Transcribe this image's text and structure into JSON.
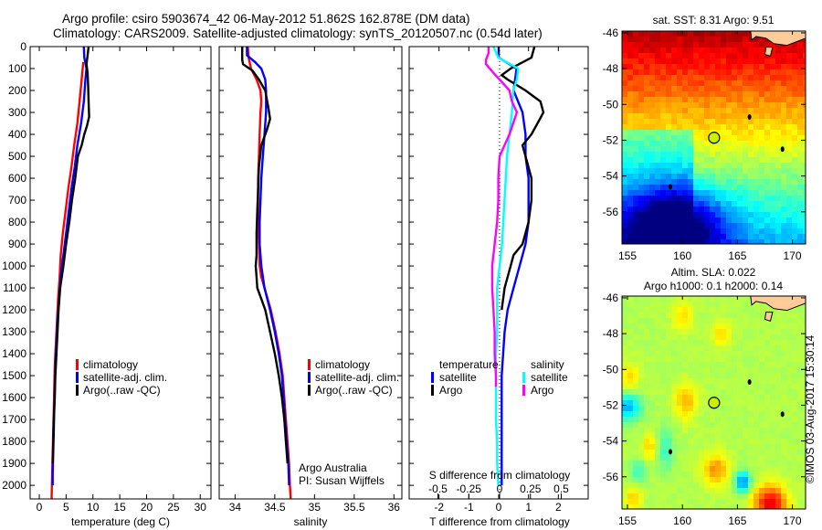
{
  "header": {
    "title_line1": "Argo profile: csiro 5903674_42 06-May-2012 51.862S 162.878E (DM data)",
    "title_line2": "Climatology: CARS2009. Satellite-adjusted climatology: synTS_20120507.nc (0.54d later)"
  },
  "colors": {
    "climatology": "#ff0000",
    "satellite": "#0000ff",
    "argo": "#000000",
    "salinity_satellite": "#00ffff",
    "salinity_argo": "#ff00ff"
  },
  "chart_data": [
    {
      "id": "temperature",
      "type": "line",
      "xlabel": "temperature (deg C)",
      "ylabel": "",
      "xlim": [
        -1.7,
        32
      ],
      "ylim": [
        2062,
        0
      ],
      "xticks": [
        0,
        5,
        10,
        15,
        20,
        25,
        30
      ],
      "yticks": [
        0,
        100,
        200,
        300,
        400,
        500,
        600,
        700,
        800,
        900,
        1000,
        1100,
        1200,
        1300,
        1400,
        1500,
        1600,
        1700,
        1800,
        1900,
        2000
      ],
      "legend": {
        "position": "center",
        "entries": [
          "climatology",
          "satellite-adj. clim.",
          "Argo(..raw -QC)"
        ]
      },
      "series": [
        {
          "name": "climatology",
          "color": "#ff0000",
          "depth": [
            70,
            150,
            250,
            350,
            450,
            550,
            650,
            750,
            850,
            950,
            1050,
            1150,
            1250,
            1350,
            1450,
            1550,
            1650,
            1750,
            1850,
            1950,
            2060
          ],
          "values": [
            8.2,
            7.9,
            7.5,
            7.1,
            6.5,
            6.0,
            5.4,
            4.9,
            4.4,
            4.0,
            3.8,
            3.5,
            3.3,
            3.1,
            2.9,
            2.8,
            2.7,
            2.6,
            2.5,
            2.4,
            2.3
          ]
        },
        {
          "name": "satellite-adj. clim.",
          "color": "#0000ff",
          "depth": [
            0,
            50,
            100,
            150,
            250,
            350,
            450,
            550,
            650,
            750,
            850,
            950,
            1050,
            1150,
            1250,
            1350,
            1450,
            1550,
            1650,
            1750,
            1850,
            1950,
            2000
          ],
          "values": [
            8.3,
            8.4,
            8.8,
            8.6,
            8.3,
            7.8,
            7.1,
            6.6,
            6.0,
            5.5,
            5.0,
            4.5,
            4.0,
            3.7,
            3.4,
            3.2,
            3.0,
            2.9,
            2.8,
            2.7,
            2.6,
            2.5,
            2.5
          ]
        },
        {
          "name": "Argo(..raw -QC)",
          "color": "#000000",
          "depth": [
            0,
            40,
            80,
            120,
            180,
            250,
            320,
            360,
            400,
            450,
            500,
            600,
            700,
            800,
            900,
            1000,
            1100,
            1200,
            1300,
            1400,
            1500,
            1600,
            1700,
            1800,
            1900
          ],
          "values": [
            9.2,
            9.0,
            8.8,
            9.0,
            9.1,
            9.2,
            9.3,
            8.9,
            8.4,
            7.9,
            7.2,
            6.7,
            6.1,
            5.6,
            5.0,
            4.5,
            3.9,
            3.6,
            3.4,
            3.2,
            3.0,
            2.9,
            2.7,
            2.6,
            2.5
          ]
        }
      ]
    },
    {
      "id": "salinity",
      "type": "line",
      "xlabel": "salinity",
      "xlim": [
        33.8,
        36.1
      ],
      "ylim": [
        2062,
        0
      ],
      "xticks": [
        34,
        34.5,
        35,
        35.5,
        36
      ],
      "xticklabels": [
        "34",
        "34.5",
        "35",
        "35.5",
        "36"
      ],
      "legend": {
        "position": "center-right",
        "entries": [
          "climatology",
          "satellite-adj. clim.",
          "Argo(..raw -QC)"
        ]
      },
      "annotation": [
        "Argo Australia",
        "PI: Susan Wijffels"
      ],
      "series": [
        {
          "name": "climatology",
          "color": "#ff0000",
          "depth": [
            0,
            50,
            100,
            150,
            200,
            250,
            300,
            400,
            500,
            600,
            700,
            800,
            900,
            1000,
            1050,
            1100,
            1200,
            1300,
            1400,
            1500,
            1600,
            1700,
            1800,
            1900,
            2000,
            2060
          ],
          "values": [
            34.16,
            34.17,
            34.2,
            34.27,
            34.32,
            34.33,
            34.32,
            34.31,
            34.3,
            34.29,
            34.29,
            34.29,
            34.3,
            34.31,
            34.33,
            34.37,
            34.45,
            34.51,
            34.56,
            34.6,
            34.62,
            34.64,
            34.66,
            34.68,
            34.69,
            34.7
          ]
        },
        {
          "name": "satellite-adj. clim.",
          "color": "#0000ff",
          "depth": [
            0,
            40,
            70,
            100,
            150,
            200,
            300,
            400,
            500,
            600,
            700,
            800,
            900,
            1000,
            1100,
            1200,
            1300,
            1400,
            1500,
            1600,
            1700,
            1800,
            1900,
            2000
          ],
          "values": [
            34.15,
            34.15,
            34.25,
            34.33,
            34.38,
            34.39,
            34.39,
            34.37,
            34.35,
            34.33,
            34.32,
            34.31,
            34.31,
            34.33,
            34.37,
            34.44,
            34.5,
            34.55,
            34.59,
            34.61,
            34.63,
            34.65,
            34.67,
            34.68
          ]
        },
        {
          "name": "Argo(..raw -QC)",
          "color": "#000000",
          "depth": [
            0,
            60,
            80,
            110,
            150,
            200,
            280,
            330,
            380,
            450,
            550,
            650,
            750,
            850,
            950,
            1000,
            1050,
            1100,
            1150,
            1200,
            1300,
            1400,
            1500,
            1600,
            1700,
            1800,
            1900
          ],
          "values": [
            34.09,
            34.09,
            34.1,
            34.22,
            34.3,
            34.38,
            34.42,
            34.44,
            34.4,
            34.33,
            34.3,
            34.29,
            34.28,
            34.27,
            34.27,
            34.26,
            34.27,
            34.28,
            34.33,
            34.38,
            34.44,
            34.5,
            34.55,
            34.59,
            34.62,
            34.64,
            34.66
          ]
        }
      ]
    },
    {
      "id": "difference",
      "type": "line",
      "xlabel": "T difference from climatology",
      "xlabel_top": "S difference from climatology",
      "xlim": [
        -3,
        3
      ],
      "ylim": [
        2062,
        0
      ],
      "xticks": [
        -2,
        -1,
        0,
        1,
        2
      ],
      "s_xticks": [
        -0.5,
        -0.25,
        0,
        0.25,
        0.5
      ],
      "s_xticklabels": [
        "-0.5",
        "-0.25",
        "0",
        "0.25",
        "0.5"
      ],
      "legend": {
        "position": "center",
        "temperature_header": "temperature",
        "salinity_header": "salinity",
        "entries": [
          "satellite",
          "Argo",
          "satellite",
          "Argo"
        ]
      },
      "series": [
        {
          "name": "temperature satellite",
          "color": "#0000ff",
          "depth": [
            0,
            50,
            100,
            200,
            300,
            400,
            500,
            600,
            700,
            800,
            900,
            1000,
            1100,
            1200,
            1300,
            1400,
            1500,
            1600,
            1700,
            1800,
            1900,
            2000
          ],
          "values": [
            0.0,
            0.0,
            0.6,
            0.5,
            0.8,
            0.9,
            0.9,
            1.0,
            1.0,
            1.0,
            0.9,
            0.7,
            0.5,
            0.3,
            0.2,
            0.15,
            0.1,
            0.1,
            0.1,
            0.1,
            0.1,
            0.1
          ]
        },
        {
          "name": "temperature Argo",
          "color": "#000000",
          "depth": [
            0,
            50,
            100,
            130,
            150,
            200,
            250,
            300,
            350,
            400,
            450,
            500,
            600,
            700,
            800,
            900,
            950,
            1000,
            1050,
            1100,
            1200
          ],
          "values": [
            1.2,
            1.1,
            0.4,
            0.1,
            0.3,
            0.9,
            1.4,
            1.5,
            1.3,
            1.1,
            0.8,
            0.9,
            1.1,
            1.1,
            1.0,
            0.8,
            0.5,
            0.4,
            0.3,
            0.2,
            0.1
          ]
        },
        {
          "name": "salinity satellite",
          "color": "#00ffff",
          "depth": [
            0,
            50,
            100,
            150,
            200,
            300,
            400,
            500,
            600,
            700,
            800,
            900,
            1000,
            1100,
            1200,
            1300,
            1400,
            1500,
            1600,
            1700,
            1800,
            1900,
            2000
          ],
          "values": [
            -0.05,
            -0.01,
            0.15,
            0.14,
            0.11,
            0.1,
            0.08,
            0.06,
            0.05,
            0.04,
            0.03,
            0.02,
            0.0,
            -0.02,
            -0.02,
            -0.02,
            -0.03,
            -0.03,
            -0.03,
            -0.03,
            -0.02,
            -0.02,
            -0.01
          ]
        },
        {
          "name": "salinity Argo",
          "color": "#ff00ff",
          "depth": [
            0,
            30,
            60,
            80,
            120,
            150,
            200,
            250,
            300,
            400,
            450,
            500,
            600,
            700,
            800,
            900,
            1000,
            1050,
            1100,
            1200,
            1300,
            1400,
            1500,
            1550
          ],
          "values": [
            -0.09,
            -0.09,
            -0.11,
            -0.11,
            -0.05,
            0.0,
            0.08,
            0.1,
            0.14,
            0.08,
            0.04,
            0.0,
            -0.01,
            -0.01,
            -0.02,
            -0.04,
            -0.06,
            -0.06,
            -0.06,
            -0.05,
            -0.04,
            -0.04,
            -0.03,
            -0.03
          ]
        }
      ]
    },
    {
      "id": "sst-map",
      "type": "heatmap",
      "title": "sat. SST: 8.31 Argo: 9.51",
      "xlim": [
        154.5,
        171.2
      ],
      "ylim": [
        -57.8,
        -45.9
      ],
      "xticks": [
        155,
        160,
        165,
        170
      ],
      "yticks": [
        -46,
        -48,
        -50,
        -52,
        -54,
        -56
      ],
      "marker": {
        "lon": 162.878,
        "lat": -51.862
      },
      "field_description": "warm (dark red) in north near New Zealand, yellow mid, green, cyan to dark blue in south-west"
    },
    {
      "id": "sla-map",
      "type": "heatmap",
      "title_line1": "Altim. SLA: 0.022",
      "title_line2": "Argo h1000: 0.1 h2000: 0.14",
      "xlim": [
        154.5,
        171.2
      ],
      "ylim": [
        -57.8,
        -45.9
      ],
      "xticks": [
        155,
        160,
        165,
        170
      ],
      "yticks": [
        -46,
        -48,
        -50,
        -52,
        -54,
        -56
      ],
      "marker": {
        "lon": 162.878,
        "lat": -51.862
      },
      "field_description": "mostly green with yellow/orange patches, cyan/blue lows near 155E 52S and 165.5E 56.3S, orange-red high near 168E 57.5S"
    }
  ],
  "footer": {
    "credit": "©IMOS 03-Aug-2017 15:30:14"
  }
}
